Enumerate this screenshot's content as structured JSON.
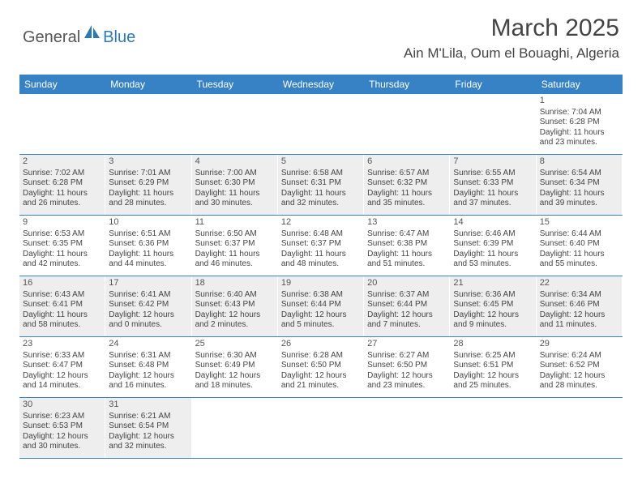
{
  "logo": {
    "general": "General",
    "blue": "Blue"
  },
  "title": {
    "month_year": "March 2025",
    "location": "Ain M'Lila, Oum el Bouaghi, Algeria"
  },
  "colors": {
    "header_bg": "#3682c4",
    "header_text": "#ffffff",
    "shaded_bg": "#eeeeee",
    "row_border": "#3682c4",
    "text": "#444444",
    "logo_gray": "#555555",
    "logo_blue": "#2a7ab8"
  },
  "weekdays": [
    "Sunday",
    "Monday",
    "Tuesday",
    "Wednesday",
    "Thursday",
    "Friday",
    "Saturday"
  ],
  "weeks": [
    [
      {
        "empty": true
      },
      {
        "empty": true
      },
      {
        "empty": true
      },
      {
        "empty": true
      },
      {
        "empty": true
      },
      {
        "empty": true
      },
      {
        "num": "1",
        "sunrise": "Sunrise: 7:04 AM",
        "sunset": "Sunset: 6:28 PM",
        "daylight1": "Daylight: 11 hours",
        "daylight2": "and 23 minutes."
      }
    ],
    [
      {
        "num": "2",
        "shaded": true,
        "sunrise": "Sunrise: 7:02 AM",
        "sunset": "Sunset: 6:28 PM",
        "daylight1": "Daylight: 11 hours",
        "daylight2": "and 26 minutes."
      },
      {
        "num": "3",
        "shaded": true,
        "sunrise": "Sunrise: 7:01 AM",
        "sunset": "Sunset: 6:29 PM",
        "daylight1": "Daylight: 11 hours",
        "daylight2": "and 28 minutes."
      },
      {
        "num": "4",
        "shaded": true,
        "sunrise": "Sunrise: 7:00 AM",
        "sunset": "Sunset: 6:30 PM",
        "daylight1": "Daylight: 11 hours",
        "daylight2": "and 30 minutes."
      },
      {
        "num": "5",
        "shaded": true,
        "sunrise": "Sunrise: 6:58 AM",
        "sunset": "Sunset: 6:31 PM",
        "daylight1": "Daylight: 11 hours",
        "daylight2": "and 32 minutes."
      },
      {
        "num": "6",
        "shaded": true,
        "sunrise": "Sunrise: 6:57 AM",
        "sunset": "Sunset: 6:32 PM",
        "daylight1": "Daylight: 11 hours",
        "daylight2": "and 35 minutes."
      },
      {
        "num": "7",
        "shaded": true,
        "sunrise": "Sunrise: 6:55 AM",
        "sunset": "Sunset: 6:33 PM",
        "daylight1": "Daylight: 11 hours",
        "daylight2": "and 37 minutes."
      },
      {
        "num": "8",
        "shaded": true,
        "sunrise": "Sunrise: 6:54 AM",
        "sunset": "Sunset: 6:34 PM",
        "daylight1": "Daylight: 11 hours",
        "daylight2": "and 39 minutes."
      }
    ],
    [
      {
        "num": "9",
        "sunrise": "Sunrise: 6:53 AM",
        "sunset": "Sunset: 6:35 PM",
        "daylight1": "Daylight: 11 hours",
        "daylight2": "and 42 minutes."
      },
      {
        "num": "10",
        "sunrise": "Sunrise: 6:51 AM",
        "sunset": "Sunset: 6:36 PM",
        "daylight1": "Daylight: 11 hours",
        "daylight2": "and 44 minutes."
      },
      {
        "num": "11",
        "sunrise": "Sunrise: 6:50 AM",
        "sunset": "Sunset: 6:37 PM",
        "daylight1": "Daylight: 11 hours",
        "daylight2": "and 46 minutes."
      },
      {
        "num": "12",
        "sunrise": "Sunrise: 6:48 AM",
        "sunset": "Sunset: 6:37 PM",
        "daylight1": "Daylight: 11 hours",
        "daylight2": "and 48 minutes."
      },
      {
        "num": "13",
        "sunrise": "Sunrise: 6:47 AM",
        "sunset": "Sunset: 6:38 PM",
        "daylight1": "Daylight: 11 hours",
        "daylight2": "and 51 minutes."
      },
      {
        "num": "14",
        "sunrise": "Sunrise: 6:46 AM",
        "sunset": "Sunset: 6:39 PM",
        "daylight1": "Daylight: 11 hours",
        "daylight2": "and 53 minutes."
      },
      {
        "num": "15",
        "sunrise": "Sunrise: 6:44 AM",
        "sunset": "Sunset: 6:40 PM",
        "daylight1": "Daylight: 11 hours",
        "daylight2": "and 55 minutes."
      }
    ],
    [
      {
        "num": "16",
        "shaded": true,
        "sunrise": "Sunrise: 6:43 AM",
        "sunset": "Sunset: 6:41 PM",
        "daylight1": "Daylight: 11 hours",
        "daylight2": "and 58 minutes."
      },
      {
        "num": "17",
        "shaded": true,
        "sunrise": "Sunrise: 6:41 AM",
        "sunset": "Sunset: 6:42 PM",
        "daylight1": "Daylight: 12 hours",
        "daylight2": "and 0 minutes."
      },
      {
        "num": "18",
        "shaded": true,
        "sunrise": "Sunrise: 6:40 AM",
        "sunset": "Sunset: 6:43 PM",
        "daylight1": "Daylight: 12 hours",
        "daylight2": "and 2 minutes."
      },
      {
        "num": "19",
        "shaded": true,
        "sunrise": "Sunrise: 6:38 AM",
        "sunset": "Sunset: 6:44 PM",
        "daylight1": "Daylight: 12 hours",
        "daylight2": "and 5 minutes."
      },
      {
        "num": "20",
        "shaded": true,
        "sunrise": "Sunrise: 6:37 AM",
        "sunset": "Sunset: 6:44 PM",
        "daylight1": "Daylight: 12 hours",
        "daylight2": "and 7 minutes."
      },
      {
        "num": "21",
        "shaded": true,
        "sunrise": "Sunrise: 6:36 AM",
        "sunset": "Sunset: 6:45 PM",
        "daylight1": "Daylight: 12 hours",
        "daylight2": "and 9 minutes."
      },
      {
        "num": "22",
        "shaded": true,
        "sunrise": "Sunrise: 6:34 AM",
        "sunset": "Sunset: 6:46 PM",
        "daylight1": "Daylight: 12 hours",
        "daylight2": "and 11 minutes."
      }
    ],
    [
      {
        "num": "23",
        "sunrise": "Sunrise: 6:33 AM",
        "sunset": "Sunset: 6:47 PM",
        "daylight1": "Daylight: 12 hours",
        "daylight2": "and 14 minutes."
      },
      {
        "num": "24",
        "sunrise": "Sunrise: 6:31 AM",
        "sunset": "Sunset: 6:48 PM",
        "daylight1": "Daylight: 12 hours",
        "daylight2": "and 16 minutes."
      },
      {
        "num": "25",
        "sunrise": "Sunrise: 6:30 AM",
        "sunset": "Sunset: 6:49 PM",
        "daylight1": "Daylight: 12 hours",
        "daylight2": "and 18 minutes."
      },
      {
        "num": "26",
        "sunrise": "Sunrise: 6:28 AM",
        "sunset": "Sunset: 6:50 PM",
        "daylight1": "Daylight: 12 hours",
        "daylight2": "and 21 minutes."
      },
      {
        "num": "27",
        "sunrise": "Sunrise: 6:27 AM",
        "sunset": "Sunset: 6:50 PM",
        "daylight1": "Daylight: 12 hours",
        "daylight2": "and 23 minutes."
      },
      {
        "num": "28",
        "sunrise": "Sunrise: 6:25 AM",
        "sunset": "Sunset: 6:51 PM",
        "daylight1": "Daylight: 12 hours",
        "daylight2": "and 25 minutes."
      },
      {
        "num": "29",
        "sunrise": "Sunrise: 6:24 AM",
        "sunset": "Sunset: 6:52 PM",
        "daylight1": "Daylight: 12 hours",
        "daylight2": "and 28 minutes."
      }
    ],
    [
      {
        "num": "30",
        "shaded": true,
        "sunrise": "Sunrise: 6:23 AM",
        "sunset": "Sunset: 6:53 PM",
        "daylight1": "Daylight: 12 hours",
        "daylight2": "and 30 minutes."
      },
      {
        "num": "31",
        "shaded": true,
        "sunrise": "Sunrise: 6:21 AM",
        "sunset": "Sunset: 6:54 PM",
        "daylight1": "Daylight: 12 hours",
        "daylight2": "and 32 minutes."
      },
      {
        "empty": true
      },
      {
        "empty": true
      },
      {
        "empty": true
      },
      {
        "empty": true
      },
      {
        "empty": true
      }
    ]
  ]
}
